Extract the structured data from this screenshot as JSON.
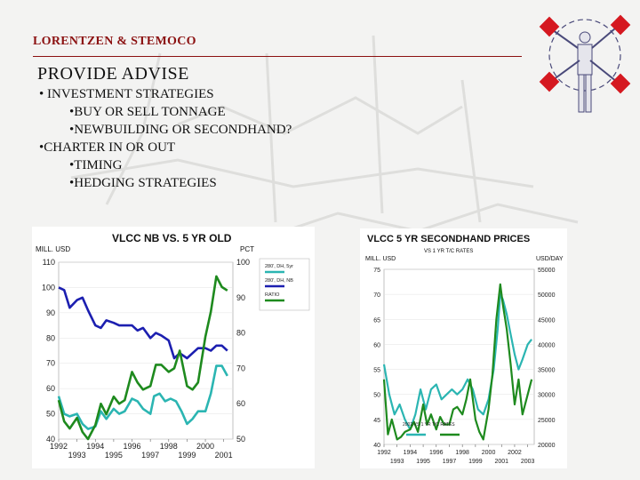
{
  "header": {
    "company": "LORENTZEN & STEMOCO"
  },
  "main": {
    "title": "PROVIDE ADVISE",
    "bullets": [
      {
        "text": "• INVESTMENT STRATEGIES",
        "level": 1
      },
      {
        "text": "•BUY OR SELL TONNAGE",
        "level": 2
      },
      {
        "text": "•NEWBUILDING OR SECONDHAND?",
        "level": 2
      },
      {
        "text": "•CHARTER IN OR OUT",
        "level": 1
      },
      {
        "text": "•TIMING",
        "level": 2
      },
      {
        "text": "•HEDGING STRATEGIES",
        "level": 2
      }
    ]
  },
  "colors": {
    "title_red": "#8b1111",
    "teal": "#2bb5b2",
    "navy": "#1c1fb0",
    "green": "#1e8a1e"
  },
  "chart_data": [
    {
      "type": "line",
      "title": "VLCC NB VS. 5 YR OLD",
      "left_axis_label": "MILL. USD",
      "right_axis_label": "PCT",
      "left_ylim": [
        40,
        110
      ],
      "left_ticks": [
        "110",
        "100",
        "90",
        "80",
        "70",
        "60",
        "50",
        "40"
      ],
      "right_ylim": [
        50,
        100
      ],
      "right_ticks": [
        "100",
        "90",
        "80",
        "70",
        "60",
        "50"
      ],
      "xlim": [
        1992,
        2001.5
      ],
      "x_ticks_top": [
        "1992",
        "1994",
        "1996",
        "1998",
        "2000"
      ],
      "x_ticks_bottom": [
        "1993",
        "1995",
        "1997",
        "1999",
        "2001"
      ],
      "legend": [
        "280', DH, 5yr",
        "280', DH, NB",
        "RATIO"
      ],
      "series": [
        {
          "name": "280', DH, 5yr",
          "color": "#2bb5b2",
          "axis": "left",
          "x": [
            1992.0,
            1992.3,
            1992.6,
            1993.0,
            1993.3,
            1993.6,
            1994.0,
            1994.3,
            1994.6,
            1995.0,
            1995.3,
            1995.6,
            1996.0,
            1996.3,
            1996.6,
            1997.0,
            1997.2,
            1997.5,
            1997.8,
            1998.1,
            1998.4,
            1998.7,
            1999.0,
            1999.3,
            1999.6,
            2000.0,
            2000.3,
            2000.6,
            2000.9,
            2001.2
          ],
          "y": [
            57,
            50,
            49,
            50,
            46,
            44,
            45,
            51,
            48,
            52,
            50,
            51,
            56,
            55,
            52,
            50,
            57,
            58,
            55,
            56,
            55,
            51,
            46,
            48,
            51,
            51,
            58,
            69,
            69,
            65
          ]
        },
        {
          "name": "280', DH, NB",
          "color": "#1c1fb0",
          "axis": "left",
          "x": [
            1992.0,
            1992.3,
            1992.6,
            1993.0,
            1993.3,
            1993.6,
            1994.0,
            1994.3,
            1994.6,
            1995.0,
            1995.3,
            1995.6,
            1996.0,
            1996.3,
            1996.6,
            1997.0,
            1997.3,
            1997.6,
            1998.0,
            1998.3,
            1998.6,
            1999.0,
            1999.3,
            1999.6,
            2000.0,
            2000.3,
            2000.6,
            2000.9,
            2001.2
          ],
          "y": [
            100,
            99,
            92,
            95,
            96,
            91,
            85,
            84,
            87,
            86,
            85,
            85,
            85,
            83,
            84,
            80,
            82,
            81,
            79,
            72,
            74,
            72,
            74,
            76,
            76,
            75,
            77,
            77,
            75
          ]
        },
        {
          "name": "RATIO",
          "color": "#1e8a1e",
          "axis": "right",
          "x": [
            1992.0,
            1992.3,
            1992.6,
            1993.0,
            1993.3,
            1993.6,
            1994.0,
            1994.3,
            1994.6,
            1995.0,
            1995.3,
            1995.6,
            1996.0,
            1996.3,
            1996.6,
            1997.0,
            1997.3,
            1997.6,
            1998.0,
            1998.3,
            1998.6,
            1999.0,
            1999.3,
            1999.6,
            2000.0,
            2000.3,
            2000.6,
            2000.9,
            2001.2
          ],
          "y": [
            61,
            55,
            53,
            56,
            52,
            50,
            54,
            60,
            57,
            62,
            60,
            61,
            69,
            66,
            64,
            65,
            71,
            71,
            69,
            70,
            75,
            65,
            64,
            66,
            79,
            86,
            96,
            93,
            92
          ]
        }
      ]
    },
    {
      "type": "line",
      "title": "VLCC 5 YR SECONDHAND PRICES",
      "subtitle": "VS 1 YR T/C RATES",
      "left_axis_label": "MILL. USD",
      "right_axis_label": "USD/DAY",
      "left_ylim": [
        40,
        75
      ],
      "left_ticks": [
        "75",
        "70",
        "65",
        "60",
        "55",
        "50",
        "45",
        "40"
      ],
      "right_ylim": [
        20000,
        55000
      ],
      "right_ticks": [
        "55000",
        "50000",
        "45000",
        "40000",
        "35000",
        "30000",
        "25000",
        "20000"
      ],
      "xlim": [
        1992,
        2003.5
      ],
      "x_ticks_top": [
        "1992",
        "1994",
        "1996",
        "1998",
        "2000",
        "2002"
      ],
      "x_ticks_bottom": [
        "1993",
        "1995",
        "1997",
        "1999",
        "2001",
        "2003"
      ],
      "legend_text": "2002 VS 1 YR T/C RATES",
      "series": [
        {
          "name": "",
          "color": "#2bb5b2",
          "axis": "left",
          "x": [
            1992.0,
            1992.4,
            1992.8,
            1993.2,
            1993.6,
            1994.0,
            1994.4,
            1994.8,
            1995.2,
            1995.6,
            1996.0,
            1996.4,
            1996.8,
            1997.2,
            1997.6,
            1998.0,
            1998.4,
            1998.8,
            1999.2,
            1999.6,
            2000.0,
            2000.4,
            2000.7,
            2000.9,
            2001.1,
            2001.4,
            2001.7,
            2002.0,
            2002.3,
            2002.6,
            2003.0,
            2003.3
          ],
          "y": [
            56,
            50,
            46,
            48,
            45,
            43,
            46,
            51,
            47,
            51,
            52,
            49,
            50,
            51,
            50,
            51,
            53,
            51,
            47,
            46,
            49,
            55,
            63,
            70,
            69,
            66,
            62,
            58,
            55,
            57,
            60,
            61
          ]
        },
        {
          "name": "",
          "color": "#1e8a1e",
          "axis": "right",
          "x": [
            1992.0,
            1992.3,
            1992.6,
            1993.0,
            1993.3,
            1993.6,
            1994.0,
            1994.3,
            1994.6,
            1995.0,
            1995.3,
            1995.6,
            1996.0,
            1996.3,
            1996.6,
            1997.0,
            1997.3,
            1997.6,
            1998.0,
            1998.3,
            1998.6,
            1999.0,
            1999.3,
            1999.6,
            2000.0,
            2000.3,
            2000.6,
            2000.9,
            2001.1,
            2001.4,
            2001.7,
            2002.0,
            2002.3,
            2002.6,
            2003.0,
            2003.3
          ],
          "y": [
            33000,
            22000,
            25000,
            21000,
            21500,
            22500,
            23000,
            24500,
            22500,
            28000,
            24000,
            26000,
            23000,
            25500,
            24000,
            24000,
            27000,
            27500,
            26000,
            29000,
            33000,
            25000,
            22500,
            21000,
            27000,
            34000,
            45000,
            52000,
            48000,
            43000,
            36000,
            28000,
            33000,
            26000,
            30000,
            33000
          ]
        }
      ]
    }
  ]
}
